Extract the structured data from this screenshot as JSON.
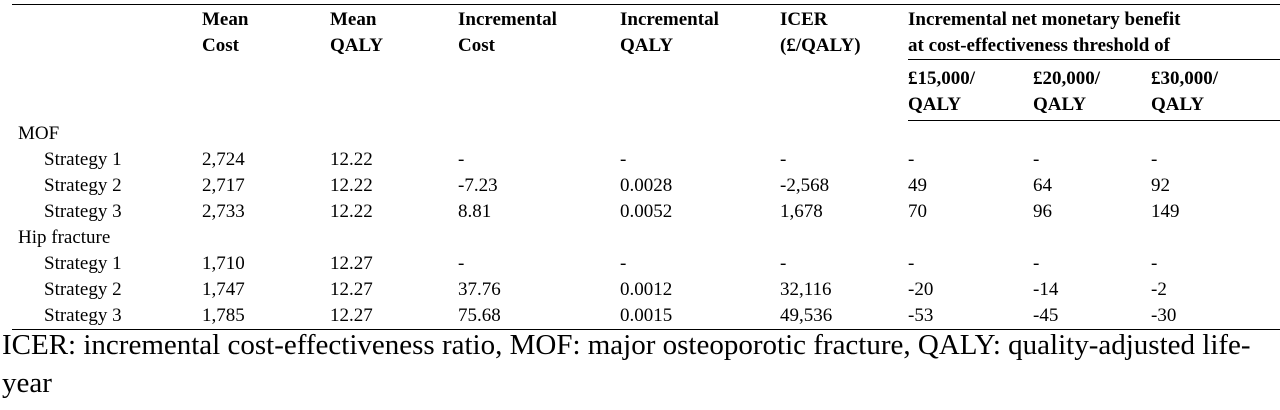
{
  "table": {
    "headers": {
      "mean_cost": "Mean\nCost",
      "mean_qaly": "Mean\nQALY",
      "incremental_cost": "Incremental\nCost",
      "incremental_qaly": "Incremental\nQALY",
      "icer": "ICER\n(£/QALY)",
      "inmb_group": "Incremental net monetary benefit\nat cost-effectiveness threshold of",
      "thresholds": [
        "£15,000/\nQALY",
        "£20,000/\nQALY",
        "£30,000/\nQALY"
      ]
    },
    "groups": [
      {
        "label": "MOF",
        "rows": [
          {
            "label": "Strategy 1",
            "cells": [
              "2,724",
              "12.22",
              "-",
              "-",
              "-",
              "-",
              "-",
              "-"
            ]
          },
          {
            "label": "Strategy 2",
            "cells": [
              "2,717",
              "12.22",
              "-7.23",
              "0.0028",
              "-2,568",
              "49",
              "64",
              "92"
            ]
          },
          {
            "label": "Strategy 3",
            "cells": [
              "2,733",
              "12.22",
              "8.81",
              "0.0052",
              "1,678",
              "70",
              "96",
              "149"
            ]
          }
        ]
      },
      {
        "label": "Hip fracture",
        "rows": [
          {
            "label": "Strategy 1",
            "cells": [
              "1,710",
              "12.27",
              "-",
              "-",
              "-",
              "-",
              "-",
              "-"
            ]
          },
          {
            "label": "Strategy 2",
            "cells": [
              "1,747",
              "12.27",
              "37.76",
              "0.0012",
              "32,116",
              "-20",
              "-14",
              "-2"
            ]
          },
          {
            "label": "Strategy 3",
            "cells": [
              "1,785",
              "12.27",
              "75.68",
              "0.0015",
              "49,536",
              "-53",
              "-45",
              "-30"
            ]
          }
        ]
      }
    ]
  },
  "footnote": "ICER: incremental cost-effectiveness ratio, MOF: major osteoporotic fracture, QALY: quality-adjusted life-year"
}
